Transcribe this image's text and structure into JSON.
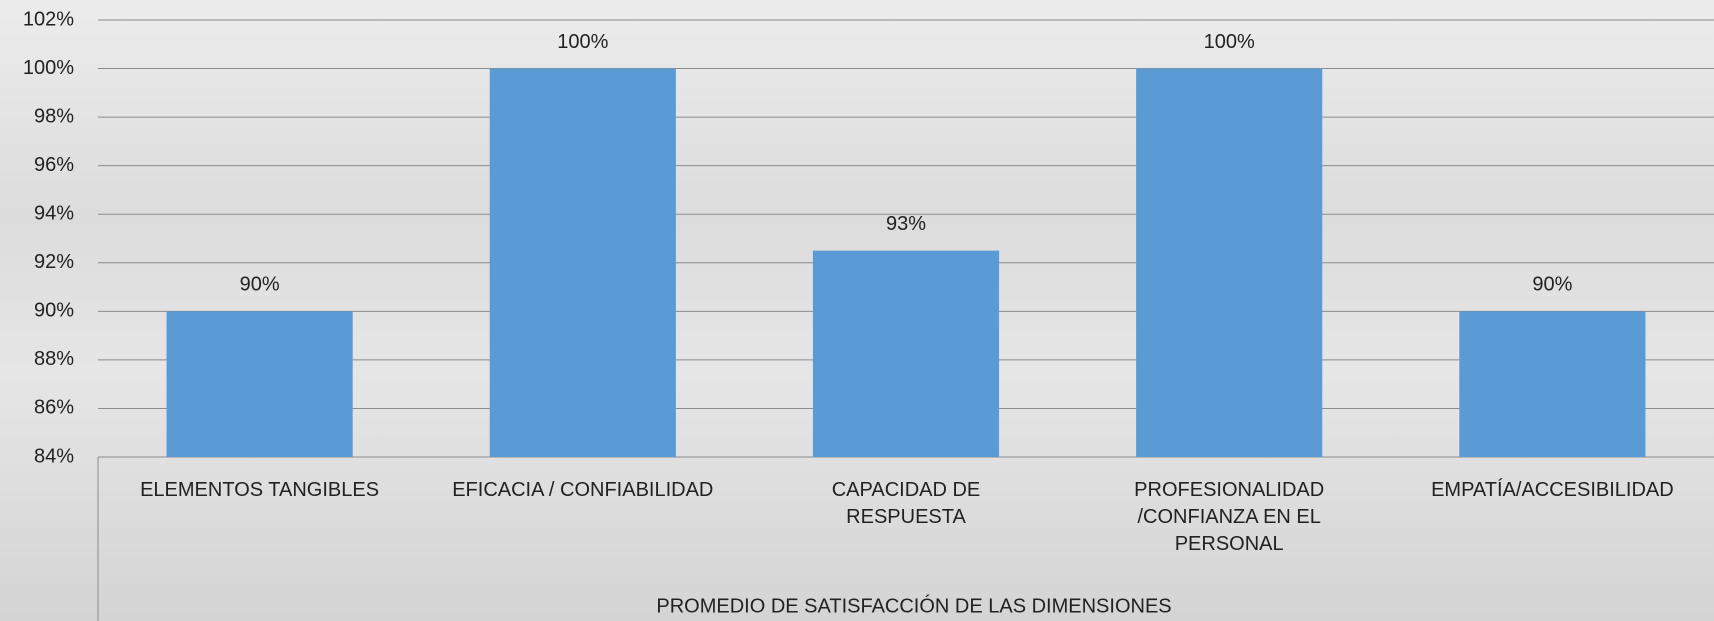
{
  "chart_data": {
    "type": "bar",
    "x_label": "PROMEDIO DE SATISFACCIÓN DE LAS DIMENSIONES",
    "categories": [
      "ELEMENTOS TANGIBLES",
      "EFICACIA / CONFIABILIDAD",
      "CAPACIDAD DE RESPUESTA",
      "PROFESIONALIDAD /CONFIANZA EN EL PERSONAL",
      "EMPATÍA/ACCESIBILIDAD"
    ],
    "values": [
      90,
      100,
      92.5,
      100,
      90
    ],
    "value_labels": [
      "90%",
      "100%",
      "93%",
      "100%",
      "90%"
    ],
    "color": "#5b9bd5",
    "ylim": [
      84,
      102
    ],
    "yticks": [
      {
        "value": 84,
        "label": "84%"
      },
      {
        "value": 86,
        "label": "86%"
      },
      {
        "value": 88,
        "label": "88%"
      },
      {
        "value": 90,
        "label": "90%"
      },
      {
        "value": 92,
        "label": "92%"
      },
      {
        "value": 94,
        "label": "94%"
      },
      {
        "value": 96,
        "label": "96%"
      },
      {
        "value": 98,
        "label": "98%"
      },
      {
        "value": 100,
        "label": "100%"
      },
      {
        "value": 102,
        "label": "102%"
      }
    ],
    "grid": true
  }
}
